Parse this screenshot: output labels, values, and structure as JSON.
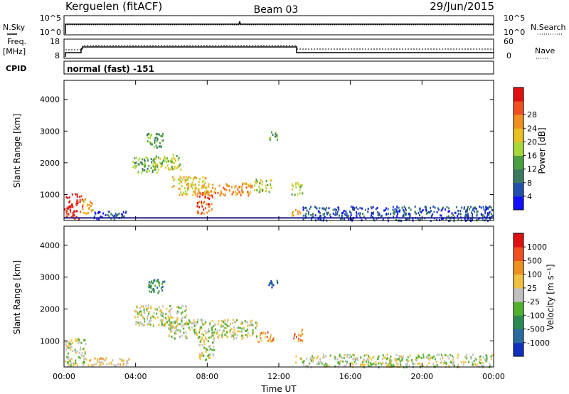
{
  "header": {
    "station": "Kerguelen (fitACF)",
    "beam": "Beam 03",
    "date": "29/Jun/2015"
  },
  "summary_panels": {
    "nsky_label": "N.Sky",
    "nsearch_label": "N.Search",
    "noise_ticks_left": [
      "10^5",
      "10^0"
    ],
    "noise_ticks_right": [
      "10^5",
      "10^0"
    ],
    "freq_label": "Freq.",
    "freq_unit": "[MHz]",
    "freq_ticks": [
      "18",
      "8"
    ],
    "nave_label": "Nave",
    "nave_ticks": [
      "60",
      "0"
    ],
    "cpid_label": "CPID",
    "cpid_value": "normal (fast) -151"
  },
  "chart_data": [
    {
      "type": "heatmap",
      "name": "power",
      "ylabel": "Slant Range [km]",
      "ylim": [
        180,
        4600
      ],
      "yticks": [
        1000,
        2000,
        3000,
        4000
      ],
      "xlabel": "Time UT",
      "xlim": [
        0,
        24
      ],
      "xticks": [
        "00:00",
        "04:00",
        "08:00",
        "12:00",
        "16:00",
        "20:00",
        "00:00"
      ],
      "colorbar": {
        "label": "Power [dB]",
        "ticks": [
          "4",
          "8",
          "12",
          "16",
          "20",
          "24",
          "28"
        ],
        "colors": [
          "#1010ff",
          "#2050b0",
          "#3a7a60",
          "#4aa040",
          "#a8d838",
          "#e8c020",
          "#f09020",
          "#f05020",
          "#e01010"
        ]
      },
      "regions": [
        {
          "t0": 0.0,
          "t1": 1.0,
          "r0": 250,
          "r1": 1050,
          "level": 8
        },
        {
          "t0": 1.0,
          "t1": 1.6,
          "r0": 400,
          "r1": 900,
          "level": 5
        },
        {
          "t0": 1.6,
          "t1": 3.6,
          "r0": 250,
          "r1": 500,
          "level": 1
        },
        {
          "t0": 3.8,
          "t1": 5.2,
          "r0": 1700,
          "r1": 2200,
          "level": 3
        },
        {
          "t0": 5.0,
          "t1": 6.5,
          "r0": 1800,
          "r1": 2300,
          "level": 4
        },
        {
          "t0": 4.6,
          "t1": 5.6,
          "r0": 2500,
          "r1": 2950,
          "level": 3
        },
        {
          "t0": 6.0,
          "t1": 8.0,
          "r0": 1000,
          "r1": 1600,
          "level": 5
        },
        {
          "t0": 7.4,
          "t1": 8.3,
          "r0": 400,
          "r1": 1100,
          "level": 7
        },
        {
          "t0": 8.0,
          "t1": 10.5,
          "r0": 1000,
          "r1": 1400,
          "level": 6
        },
        {
          "t0": 10.6,
          "t1": 11.6,
          "r0": 1100,
          "r1": 1500,
          "level": 4
        },
        {
          "t0": 11.4,
          "t1": 11.9,
          "r0": 2700,
          "r1": 3000,
          "level": 3
        },
        {
          "t0": 12.7,
          "t1": 13.3,
          "r0": 1000,
          "r1": 1400,
          "level": 4
        },
        {
          "t0": 12.7,
          "t1": 13.3,
          "r0": 350,
          "r1": 550,
          "level": 5
        },
        {
          "t0": 13.3,
          "t1": 24.0,
          "r0": 200,
          "r1": 650,
          "level": 1
        }
      ],
      "ground_line_range_km": 180
    },
    {
      "type": "heatmap",
      "name": "velocity",
      "ylabel": "Slant Range [km]",
      "ylim": [
        180,
        4600
      ],
      "yticks": [
        1000,
        2000,
        3000,
        4000
      ],
      "xlabel": "Time UT",
      "xlim": [
        0,
        24
      ],
      "xticks": [
        "00:00",
        "04:00",
        "08:00",
        "12:00",
        "16:00",
        "20:00",
        "00:00"
      ],
      "colorbar": {
        "label": "Velocity [m s⁻¹]",
        "ticks": [
          "1000",
          "500",
          "100",
          "25",
          "-25",
          "-100",
          "-500",
          "-1000"
        ],
        "colors": [
          "#1030c0",
          "#2a6aa0",
          "#2a8a50",
          "#50b030",
          "#c0c0c0",
          "#f0c040",
          "#f09020",
          "#f05020",
          "#e01010"
        ]
      },
      "regions": [
        {
          "t0": 0.0,
          "t1": 1.2,
          "r0": 250,
          "r1": 1100,
          "level": 4
        },
        {
          "t0": 1.2,
          "t1": 3.6,
          "r0": 250,
          "r1": 500,
          "level": 5
        },
        {
          "t0": 3.9,
          "t1": 6.8,
          "r0": 1500,
          "r1": 2150,
          "level": 4
        },
        {
          "t0": 4.6,
          "t1": 5.6,
          "r0": 2500,
          "r1": 2950,
          "level": 2
        },
        {
          "t0": 5.8,
          "t1": 10.8,
          "r0": 1100,
          "r1": 1700,
          "level": 4
        },
        {
          "t0": 7.5,
          "t1": 8.4,
          "r0": 400,
          "r1": 1100,
          "level": 4
        },
        {
          "t0": 10.7,
          "t1": 11.7,
          "r0": 1000,
          "r1": 1300,
          "level": 6
        },
        {
          "t0": 11.4,
          "t1": 11.9,
          "r0": 2700,
          "r1": 3000,
          "level": 1
        },
        {
          "t0": 12.8,
          "t1": 13.3,
          "r0": 1000,
          "r1": 1400,
          "level": 6
        },
        {
          "t0": 12.9,
          "t1": 13.4,
          "r0": 350,
          "r1": 550,
          "level": 4
        },
        {
          "t0": 13.3,
          "t1": 24.0,
          "r0": 200,
          "r1": 600,
          "level": 4
        }
      ]
    }
  ]
}
